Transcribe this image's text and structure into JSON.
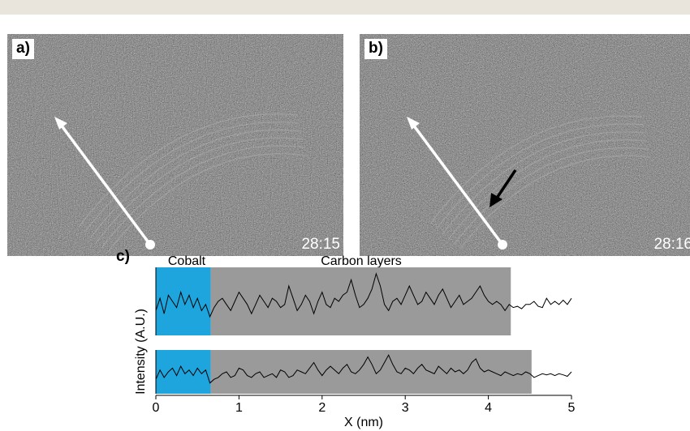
{
  "panel_a": {
    "label": "a)",
    "timestamp": "28:15"
  },
  "panel_b": {
    "label": "b)",
    "timestamp": "28:16"
  },
  "chart_data": {
    "type": "line",
    "panel_label": "c)",
    "xlabel": "X (nm)",
    "ylabel": "Intensity (A.U.)",
    "xlim": [
      0,
      5
    ],
    "xticks": [
      0,
      1,
      2,
      3,
      4,
      5
    ],
    "region_labels": {
      "cobalt": "Cobalt",
      "carbon": "Carbon layers"
    },
    "colors": {
      "cobalt": "#1fa5dd",
      "carbon": "#9a9a9a",
      "line": "#000000"
    },
    "series": [
      {
        "cobalt_range": [
          0,
          0.66
        ],
        "carbon_range": [
          0.66,
          4.27
        ],
        "x": [
          0,
          0.05,
          0.1,
          0.15,
          0.2,
          0.25,
          0.3,
          0.35,
          0.4,
          0.45,
          0.5,
          0.55,
          0.6,
          0.65,
          0.7,
          0.75,
          0.8,
          0.85,
          0.9,
          0.95,
          1.0,
          1.05,
          1.1,
          1.15,
          1.2,
          1.25,
          1.3,
          1.35,
          1.4,
          1.45,
          1.5,
          1.55,
          1.6,
          1.65,
          1.7,
          1.75,
          1.8,
          1.85,
          1.9,
          1.95,
          2.0,
          2.05,
          2.1,
          2.15,
          2.2,
          2.25,
          2.3,
          2.35,
          2.4,
          2.45,
          2.5,
          2.55,
          2.6,
          2.65,
          2.7,
          2.75,
          2.8,
          2.85,
          2.9,
          2.95,
          3.0,
          3.05,
          3.1,
          3.15,
          3.2,
          3.25,
          3.3,
          3.35,
          3.4,
          3.45,
          3.5,
          3.55,
          3.6,
          3.65,
          3.7,
          3.75,
          3.8,
          3.85,
          3.9,
          3.95,
          4.0,
          4.05,
          4.1,
          4.15,
          4.2,
          4.25,
          4.3,
          4.35,
          4.4,
          4.45,
          4.5,
          4.55,
          4.6,
          4.65,
          4.7,
          4.75,
          4.8,
          4.85,
          4.9,
          4.95,
          5.0
        ],
        "y": [
          0.35,
          0.55,
          0.3,
          0.6,
          0.5,
          0.4,
          0.65,
          0.45,
          0.6,
          0.4,
          0.55,
          0.35,
          0.45,
          0.25,
          0.4,
          0.5,
          0.55,
          0.45,
          0.35,
          0.5,
          0.65,
          0.55,
          0.45,
          0.3,
          0.45,
          0.6,
          0.5,
          0.4,
          0.55,
          0.5,
          0.4,
          0.45,
          0.75,
          0.55,
          0.35,
          0.45,
          0.6,
          0.5,
          0.3,
          0.5,
          0.65,
          0.45,
          0.4,
          0.55,
          0.5,
          0.6,
          0.65,
          0.85,
          0.6,
          0.4,
          0.45,
          0.55,
          0.7,
          0.95,
          0.75,
          0.45,
          0.35,
          0.5,
          0.55,
          0.45,
          0.6,
          0.75,
          0.6,
          0.45,
          0.5,
          0.65,
          0.55,
          0.45,
          0.6,
          0.7,
          0.55,
          0.4,
          0.5,
          0.6,
          0.45,
          0.5,
          0.55,
          0.65,
          0.75,
          0.6,
          0.5,
          0.45,
          0.5,
          0.45,
          0.35,
          0.45,
          0.4,
          0.42,
          0.38,
          0.45,
          0.45,
          0.5,
          0.42,
          0.4,
          0.55,
          0.45,
          0.5,
          0.45,
          0.52,
          0.45,
          0.55
        ]
      },
      {
        "cobalt_range": [
          0,
          0.66
        ],
        "carbon_range": [
          0.66,
          4.52
        ],
        "x": [
          0,
          0.05,
          0.1,
          0.15,
          0.2,
          0.25,
          0.3,
          0.35,
          0.4,
          0.45,
          0.5,
          0.55,
          0.6,
          0.65,
          0.7,
          0.75,
          0.8,
          0.85,
          0.9,
          0.95,
          1.0,
          1.05,
          1.1,
          1.15,
          1.2,
          1.25,
          1.3,
          1.35,
          1.4,
          1.45,
          1.5,
          1.55,
          1.6,
          1.65,
          1.7,
          1.75,
          1.8,
          1.85,
          1.9,
          1.95,
          2.0,
          2.05,
          2.1,
          2.15,
          2.2,
          2.25,
          2.3,
          2.35,
          2.4,
          2.45,
          2.5,
          2.55,
          2.6,
          2.65,
          2.7,
          2.75,
          2.8,
          2.85,
          2.9,
          2.95,
          3.0,
          3.05,
          3.1,
          3.15,
          3.2,
          3.25,
          3.3,
          3.35,
          3.4,
          3.45,
          3.5,
          3.55,
          3.6,
          3.65,
          3.7,
          3.75,
          3.8,
          3.85,
          3.9,
          3.95,
          4.0,
          4.05,
          4.1,
          4.15,
          4.2,
          4.25,
          4.3,
          4.35,
          4.4,
          4.45,
          4.5,
          4.55,
          4.6,
          4.65,
          4.7,
          4.75,
          4.8,
          4.85,
          4.9,
          4.95,
          5.0
        ],
        "y": [
          0.3,
          0.55,
          0.35,
          0.5,
          0.6,
          0.4,
          0.65,
          0.45,
          0.55,
          0.4,
          0.6,
          0.45,
          0.55,
          0.2,
          0.3,
          0.35,
          0.45,
          0.5,
          0.35,
          0.4,
          0.6,
          0.55,
          0.4,
          0.35,
          0.45,
          0.5,
          0.35,
          0.4,
          0.45,
          0.35,
          0.55,
          0.5,
          0.35,
          0.4,
          0.55,
          0.5,
          0.45,
          0.6,
          0.75,
          0.55,
          0.4,
          0.55,
          0.65,
          0.55,
          0.45,
          0.6,
          0.7,
          0.5,
          0.45,
          0.55,
          0.7,
          0.9,
          0.7,
          0.45,
          0.55,
          0.75,
          0.95,
          0.7,
          0.5,
          0.45,
          0.6,
          0.55,
          0.45,
          0.6,
          0.7,
          0.55,
          0.5,
          0.45,
          0.65,
          0.55,
          0.45,
          0.6,
          0.5,
          0.55,
          0.45,
          0.55,
          0.75,
          0.85,
          0.6,
          0.5,
          0.55,
          0.5,
          0.45,
          0.4,
          0.5,
          0.45,
          0.4,
          0.45,
          0.42,
          0.5,
          0.45,
          0.35,
          0.4,
          0.45,
          0.42,
          0.45,
          0.4,
          0.45,
          0.42,
          0.38,
          0.5
        ]
      }
    ]
  }
}
